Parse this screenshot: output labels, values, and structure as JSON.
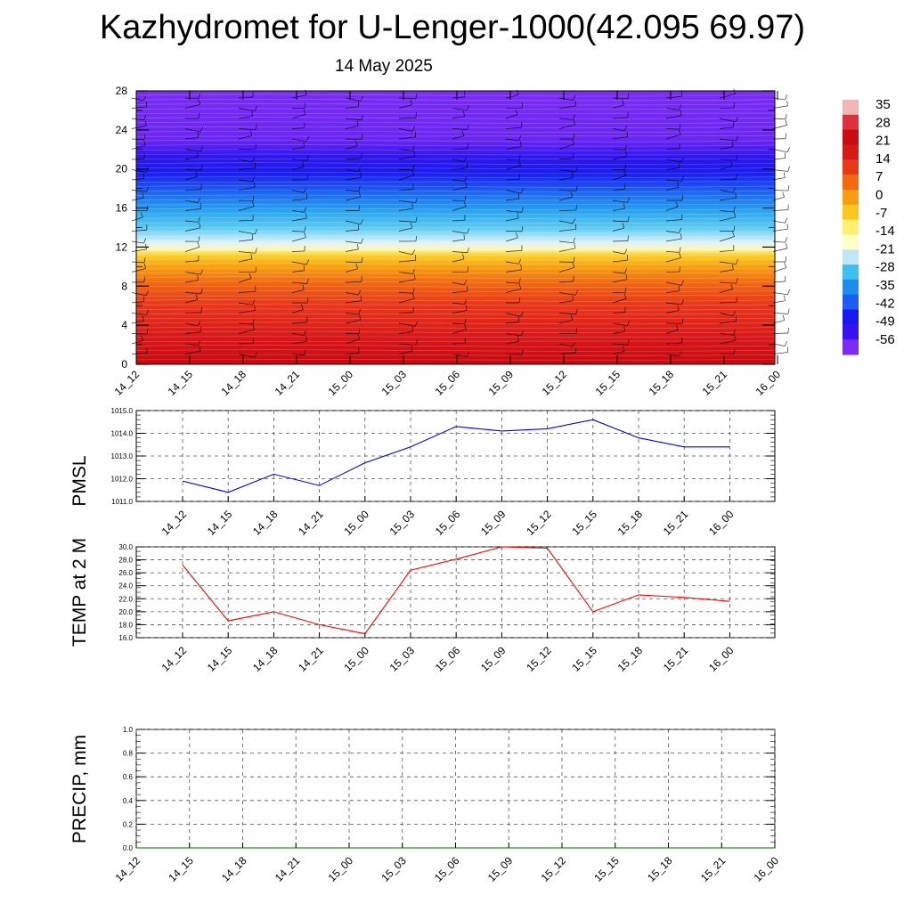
{
  "title": "Kazhydromet for U-Lenger-1000(42.095 69.97)",
  "subtitle": "14 May 2025",
  "colorbar": {
    "labels": [
      "35",
      "28",
      "21",
      "14",
      "7",
      "0",
      "-7",
      "-14",
      "-21",
      "-28",
      "-35",
      "-42",
      "-49",
      "-56"
    ],
    "colors": [
      "#f2b6b6",
      "#e0303a",
      "#c80c12",
      "#d81a16",
      "#e63a14",
      "#f06a10",
      "#f89c10",
      "#fcc620",
      "#fdf070",
      "#ffffc8",
      "#bfe6f6",
      "#3cc0f0",
      "#1e8cec",
      "#1c5cf4",
      "#1818f0",
      "#3a12f0",
      "#7a2cf2"
    ]
  },
  "chart_data": [
    {
      "type": "heatmap",
      "name": "vertical-profile",
      "y": [
        0,
        4,
        8,
        12,
        16,
        20,
        24,
        28
      ],
      "x": [
        "14_12",
        "14_15",
        "14_18",
        "14_21",
        "15_00",
        "15_03",
        "15_06",
        "15_09",
        "15_12",
        "15_15",
        "15_18",
        "15_21",
        "16_00"
      ],
      "ylim": [
        0,
        28
      ],
      "values_by_level": [
        {
          "level": 0,
          "value": 28
        },
        {
          "level": 4,
          "value": 20
        },
        {
          "level": 8,
          "value": 7
        },
        {
          "level": 11,
          "value": 0
        },
        {
          "level": 13,
          "value": -14
        },
        {
          "level": 15,
          "value": -28
        },
        {
          "level": 17,
          "value": -42
        },
        {
          "level": 20,
          "value": -56
        },
        {
          "level": 24,
          "value": -56
        },
        {
          "level": 28,
          "value": -56
        }
      ]
    },
    {
      "type": "line",
      "ylabel": "PMSL",
      "x": [
        "14_12",
        "14_15",
        "14_18",
        "14_21",
        "15_00",
        "15_03",
        "15_06",
        "15_09",
        "15_12",
        "15_15",
        "15_18",
        "15_21",
        "16_00"
      ],
      "values": [
        1011.9,
        1011.4,
        1012.2,
        1011.7,
        1012.7,
        1013.4,
        1014.3,
        1014.1,
        1014.2,
        1014.6,
        1013.8,
        1013.4,
        1013.4
      ],
      "ylim": [
        1011.0,
        1015.0
      ],
      "yticks": [
        "1011.0",
        "1012.0",
        "1013.0",
        "1014.0",
        "1015.0"
      ],
      "color": "#0000ff",
      "grid": true
    },
    {
      "type": "line",
      "ylabel": "TEMP at 2 M",
      "x": [
        "14_12",
        "14_15",
        "14_18",
        "14_21",
        "15_00",
        "15_03",
        "15_06",
        "15_09",
        "15_12",
        "15_15",
        "15_18",
        "15_21",
        "16_00"
      ],
      "values": [
        27.2,
        18.6,
        20.0,
        18.0,
        16.6,
        26.4,
        28.1,
        30.0,
        29.8,
        20.0,
        22.6,
        22.2,
        21.6
      ],
      "ylim": [
        16.0,
        30.0
      ],
      "yticks": [
        "16.0",
        "18.0",
        "20.0",
        "22.0",
        "24.0",
        "26.0",
        "28.0",
        "30.0"
      ],
      "color": "#ff0000",
      "grid": true
    },
    {
      "type": "line",
      "ylabel": "PRECIP, mm",
      "x": [
        "14_12",
        "14_15",
        "14_18",
        "14_21",
        "15_00",
        "15_03",
        "15_06",
        "15_09",
        "15_12",
        "15_15",
        "15_18",
        "15_21",
        "16_00"
      ],
      "values": [
        0,
        0,
        0,
        0,
        0,
        0,
        0,
        0,
        0,
        0,
        0,
        0,
        0
      ],
      "ylim": [
        0.0,
        1.0
      ],
      "yticks": [
        "0.0",
        "0.2",
        "0.4",
        "0.6",
        "0.8",
        "1.0"
      ],
      "color": "#006400",
      "grid": true
    }
  ],
  "colors": {
    "grid": "#555555"
  }
}
